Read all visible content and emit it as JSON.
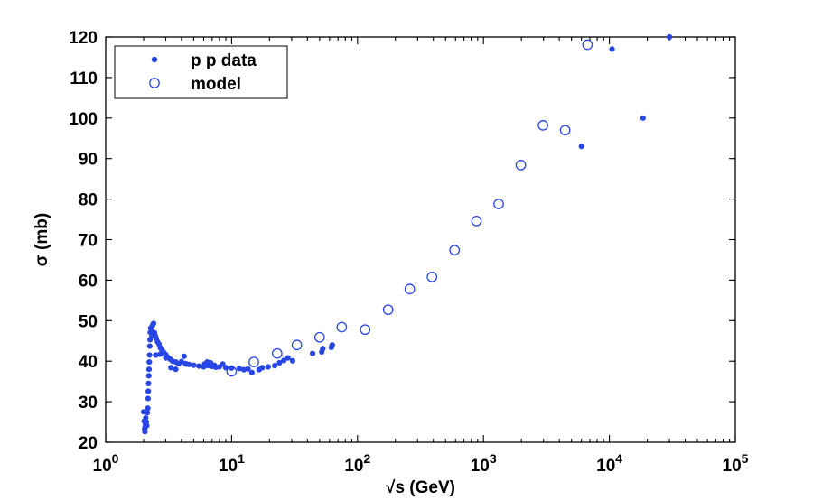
{
  "chart_data": {
    "type": "scatter",
    "title": "",
    "xlabel": "√s (GeV)",
    "ylabel": "σ (mb)",
    "xscale": "log",
    "xlim": [
      1,
      100000
    ],
    "ylim": [
      20,
      120
    ],
    "grid": false,
    "legend_position": "top-left",
    "x_tick_labels": [
      {
        "base": "10",
        "exp": "0",
        "value": 1
      },
      {
        "base": "10",
        "exp": "1",
        "value": 10
      },
      {
        "base": "10",
        "exp": "2",
        "value": 100
      },
      {
        "base": "10",
        "exp": "3",
        "value": 1000
      },
      {
        "base": "10",
        "exp": "4",
        "value": 10000
      },
      {
        "base": "10",
        "exp": "5",
        "value": 100000
      }
    ],
    "y_ticks": [
      20,
      30,
      40,
      50,
      60,
      70,
      80,
      90,
      100,
      110,
      120
    ],
    "series": [
      {
        "name": "p p data",
        "marker": "filled-circle",
        "color": "#2846e6",
        "points": [
          [
            2.0,
            27.5
          ],
          [
            2.02,
            25.2
          ],
          [
            2.04,
            23.3
          ],
          [
            2.05,
            22.6
          ],
          [
            2.06,
            23.8
          ],
          [
            2.07,
            24.6
          ],
          [
            2.08,
            26.0
          ],
          [
            2.1,
            25.0
          ],
          [
            2.12,
            24.1
          ],
          [
            2.14,
            27.3
          ],
          [
            2.16,
            28.4
          ],
          [
            2.17,
            30.8
          ],
          [
            2.18,
            32.6
          ],
          [
            2.19,
            34.5
          ],
          [
            2.2,
            36.4
          ],
          [
            2.21,
            38.0
          ],
          [
            2.22,
            39.8
          ],
          [
            2.23,
            41.5
          ],
          [
            2.24,
            43.7
          ],
          [
            2.25,
            45.3
          ],
          [
            2.26,
            47.1
          ],
          [
            2.28,
            48.2
          ],
          [
            2.3,
            47.5
          ],
          [
            2.33,
            46.2
          ],
          [
            2.36,
            48.9
          ],
          [
            2.4,
            49.3
          ],
          [
            2.44,
            47.0
          ],
          [
            2.48,
            46.2
          ],
          [
            2.52,
            45.6
          ],
          [
            2.58,
            44.8
          ],
          [
            2.65,
            44.2
          ],
          [
            2.72,
            43.3
          ],
          [
            2.8,
            42.7
          ],
          [
            2.9,
            42.1
          ],
          [
            3.0,
            41.6
          ],
          [
            3.1,
            41.0
          ],
          [
            3.25,
            40.5
          ],
          [
            3.4,
            40.0
          ],
          [
            3.6,
            39.8
          ],
          [
            3.8,
            39.4
          ],
          [
            4.0,
            39.9
          ],
          [
            4.3,
            39.4
          ],
          [
            4.6,
            39.2
          ],
          [
            5.0,
            39.0
          ],
          [
            5.5,
            38.8
          ],
          [
            6.0,
            38.6
          ],
          [
            6.5,
            38.9
          ],
          [
            7.0,
            38.7
          ],
          [
            7.5,
            38.5
          ],
          [
            8.0,
            38.6
          ],
          [
            9.0,
            38.4
          ],
          [
            10.0,
            38.3
          ],
          [
            2.5,
            41.5
          ],
          [
            2.7,
            41.7
          ],
          [
            3.0,
            40.8
          ],
          [
            3.3,
            38.4
          ],
          [
            3.6,
            38.0
          ],
          [
            4.2,
            41.2
          ],
          [
            4.4,
            39.3
          ],
          [
            6.1,
            39.3
          ],
          [
            6.4,
            39.8
          ],
          [
            6.8,
            39.6
          ],
          [
            7.3,
            39.0
          ],
          [
            8.5,
            39.3
          ],
          [
            11.5,
            38.2
          ],
          [
            12.5,
            37.9
          ],
          [
            13.5,
            38.1
          ],
          [
            14.5,
            37.2
          ],
          [
            16.5,
            37.9
          ],
          [
            17.5,
            38.4
          ],
          [
            19.5,
            38.6
          ],
          [
            22.0,
            38.9
          ],
          [
            24.0,
            39.6
          ],
          [
            26.0,
            40.2
          ],
          [
            28.0,
            40.8
          ],
          [
            30.5,
            40.1
          ],
          [
            44.0,
            41.9
          ],
          [
            52.0,
            42.3
          ],
          [
            53.0,
            43.1
          ],
          [
            62.0,
            43.4
          ],
          [
            63.0,
            44.0
          ],
          [
            6000,
            93.0
          ],
          [
            10500,
            117.0
          ],
          [
            18500,
            100.0
          ],
          [
            30000,
            120.0
          ]
        ]
      },
      {
        "name": "model",
        "marker": "open-circle",
        "color": "#2846e6",
        "points": [
          [
            10,
            37.5
          ],
          [
            15,
            39.8
          ],
          [
            23,
            41.9
          ],
          [
            33,
            44.0
          ],
          [
            50,
            45.9
          ],
          [
            75,
            48.4
          ],
          [
            115,
            47.8
          ],
          [
            175,
            52.7
          ],
          [
            260,
            57.8
          ],
          [
            390,
            60.8
          ],
          [
            590,
            67.4
          ],
          [
            880,
            74.6
          ],
          [
            1320,
            78.8
          ],
          [
            1980,
            88.4
          ],
          [
            2970,
            98.2
          ],
          [
            4450,
            97.0
          ],
          [
            6700,
            118.1
          ]
        ]
      }
    ]
  }
}
